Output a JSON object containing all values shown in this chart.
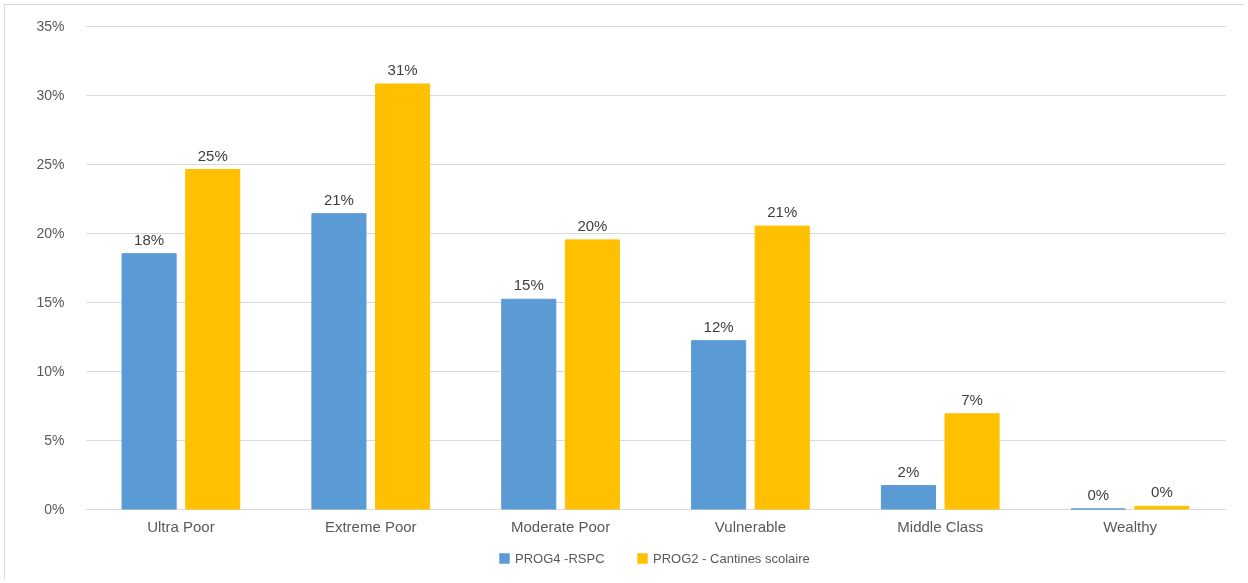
{
  "chart_data": {
    "type": "bar",
    "categories": [
      "Ultra Poor",
      "Extreme Poor",
      "Moderate Poor",
      "Vulnerable",
      "Middle Class",
      "Wealthy"
    ],
    "series": [
      {
        "name": "PROG4 -RSPC",
        "color": "#5b9bd5",
        "values": [
          18.5,
          21.4,
          15.2,
          12.2,
          1.7,
          0
        ],
        "value_labels": [
          "18%",
          "21%",
          "15%",
          "12%",
          "2%",
          "0%"
        ]
      },
      {
        "name": "PROG2 -  Cantines scolaire",
        "color": "#ffc000",
        "values": [
          24.6,
          30.8,
          19.5,
          20.5,
          6.9,
          0.2
        ],
        "value_labels": [
          "25%",
          "31%",
          "20%",
          "21%",
          "7%",
          "0%"
        ]
      }
    ],
    "ylim": [
      0,
      35
    ],
    "yticks": [
      {
        "value": 0,
        "label": "0%"
      },
      {
        "value": 5,
        "label": "5%"
      },
      {
        "value": 10,
        "label": "10%"
      },
      {
        "value": 15,
        "label": "15%"
      },
      {
        "value": 20,
        "label": "20%"
      },
      {
        "value": 25,
        "label": "25%"
      },
      {
        "value": 30,
        "label": "30%"
      },
      {
        "value": 35,
        "label": "35%"
      }
    ],
    "grid": "y",
    "legend": "bottom"
  }
}
